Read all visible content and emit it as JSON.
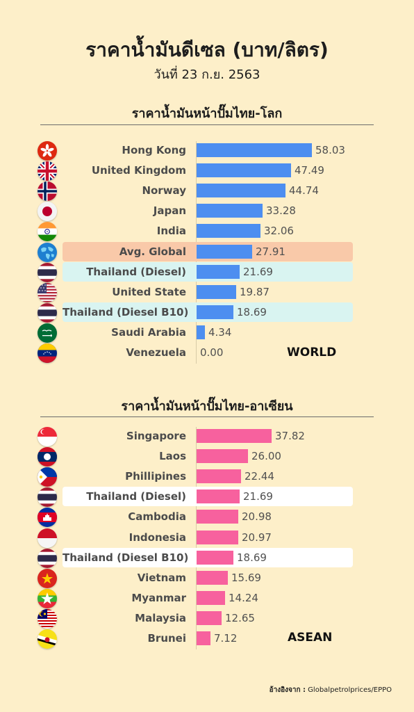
{
  "header": {
    "title": "ราคาน้ำมันดีเซล (บาท/ลิตร)",
    "subtitle": "วันที่ 23 ก.ย. 2563"
  },
  "source": {
    "label": "อ้างอิงจาก :",
    "text": "Globalpetrolprices/EPPO"
  },
  "colors": {
    "world_bar": "#4d8ef0",
    "asean_bar": "#f7619e",
    "highlight_peach": "#f9c9a9",
    "highlight_cyan": "#d9f4f1",
    "highlight_white": "#ffffff"
  },
  "chart_data": [
    {
      "type": "bar",
      "orientation": "horizontal",
      "title": "ราคาน้ำมันหน้าปั๊มไทย-โลก",
      "tag": "WORLD",
      "categories": [
        "Hong Kong",
        "United Kingdom",
        "Norway",
        "Japan",
        "India",
        "Avg. Global",
        "Thailand (Diesel)",
        "United State",
        "Thailand (Diesel B10)",
        "Saudi Arabia",
        "Venezuela"
      ],
      "values": [
        58.03,
        47.49,
        44.74,
        33.28,
        32.06,
        27.91,
        21.69,
        19.87,
        18.69,
        4.34,
        0.0
      ],
      "value_labels": [
        "58.03",
        "47.49",
        "44.74",
        "33.28",
        "32.06",
        "27.91",
        "21.69",
        "19.87",
        "18.69",
        "4.34",
        "0.00"
      ],
      "flags": [
        "hong-kong",
        "united-kingdom",
        "norway",
        "japan",
        "india",
        "globe",
        "thailand",
        "united-states",
        "thailand",
        "saudi-arabia",
        "venezuela"
      ],
      "highlights": [
        "",
        "",
        "",
        "",
        "",
        "peach",
        "cyan",
        "",
        "cyan",
        "",
        ""
      ],
      "xlim": [
        0,
        58.03
      ]
    },
    {
      "type": "bar",
      "orientation": "horizontal",
      "title": "ราคาน้ำมันหน้าปั๊มไทย-อาเซียน",
      "tag": "ASEAN",
      "categories": [
        "Singapore",
        "Laos",
        "Phillipines",
        "Thailand (Diesel)",
        "Cambodia",
        "Indonesia",
        "Thailand (Diesel B10)",
        "Vietnam",
        "Myanmar",
        "Malaysia",
        "Brunei"
      ],
      "values": [
        37.82,
        26.0,
        22.44,
        21.69,
        20.98,
        20.97,
        18.69,
        15.69,
        14.24,
        12.65,
        7.12
      ],
      "value_labels": [
        "37.82",
        "26.00",
        "22.44",
        "21.69",
        "20.98",
        "20.97",
        "18.69",
        "15.69",
        "14.24",
        "12.65",
        "7.12"
      ],
      "flags": [
        "singapore",
        "laos",
        "philippines",
        "thailand",
        "cambodia",
        "indonesia",
        "thailand",
        "vietnam",
        "myanmar",
        "malaysia",
        "brunei"
      ],
      "highlights": [
        "",
        "",
        "",
        "white",
        "",
        "",
        "white",
        "",
        "",
        "",
        ""
      ],
      "xlim": [
        0,
        58.03
      ]
    }
  ]
}
